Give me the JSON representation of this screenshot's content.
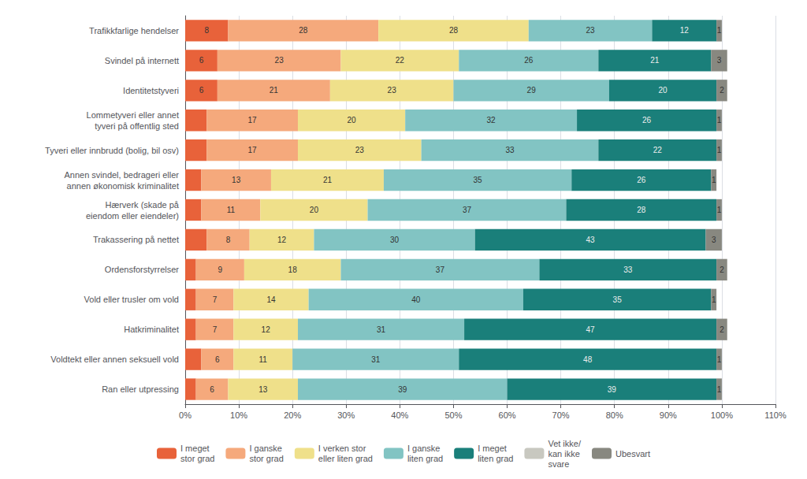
{
  "chart_data": {
    "type": "bar",
    "orientation": "horizontal",
    "stacked": true,
    "categories": [
      "Trafikkfarlige hendelser",
      "Svindel på internett",
      "Identitetstyveri",
      "Lommetyveri eller annet\ntyveri på offentlig sted",
      "Tyveri eller innbrudd (bolig, bil osv)",
      "Annen svindel, bedrageri eller\nannen økonomisk kriminalitet",
      "Hærverk (skade på\neiendom eller eiendeler)",
      "Trakassering på nettet",
      "Ordensforstyrrelser",
      "Vold eller trusler om vold",
      "Hatkriminalitet",
      "Voldtekt eller annen seksuell vold",
      "Ran eller utpressing"
    ],
    "series": [
      {
        "name": "I meget\nstor grad",
        "color": "#E8623A",
        "values": [
          8,
          6,
          6,
          4,
          4,
          3,
          3,
          4,
          2,
          2,
          2,
          3,
          2
        ],
        "value_labels": [
          "8",
          "6",
          "6",
          null,
          null,
          null,
          null,
          null,
          null,
          null,
          null,
          null,
          null
        ]
      },
      {
        "name": "I ganske\nstor grad",
        "color": "#F5A97C",
        "values": [
          28,
          23,
          21,
          17,
          17,
          13,
          11,
          8,
          9,
          7,
          7,
          6,
          6
        ]
      },
      {
        "name": "I verken stor\neller liten grad",
        "color": "#EFE08A",
        "values": [
          28,
          22,
          23,
          20,
          23,
          21,
          20,
          12,
          18,
          14,
          12,
          11,
          13
        ]
      },
      {
        "name": "I ganske\nliten grad",
        "color": "#82C4C3",
        "values": [
          23,
          26,
          29,
          32,
          33,
          35,
          37,
          30,
          37,
          40,
          31,
          31,
          39
        ]
      },
      {
        "name": "I meget\nliten grad",
        "color": "#1A7F7A",
        "values": [
          12,
          21,
          20,
          26,
          22,
          26,
          28,
          43,
          33,
          35,
          47,
          48,
          39
        ]
      },
      {
        "name": "Vet ikke/\nkan ikke\nsvare",
        "color": "#C8C8C0",
        "values": [
          0,
          0,
          0,
          0,
          0,
          0,
          0,
          0,
          0,
          0,
          0,
          0,
          0
        ],
        "value_labels": [
          null,
          null,
          null,
          null,
          null,
          null,
          null,
          null,
          null,
          null,
          null,
          null,
          null
        ]
      },
      {
        "name": "Ubesvart",
        "color": "#888880",
        "values": [
          1,
          3,
          2,
          1,
          1,
          1,
          1,
          3,
          2,
          1,
          2,
          1,
          1
        ]
      }
    ],
    "xlim": [
      0,
      110
    ],
    "xticks": [
      {
        "value": 0,
        "label": "0%"
      },
      {
        "value": 10,
        "label": "10%"
      },
      {
        "value": 20,
        "label": "20%"
      },
      {
        "value": 30,
        "label": "30%"
      },
      {
        "value": 40,
        "label": "40%"
      },
      {
        "value": 50,
        "label": "50%"
      },
      {
        "value": 60,
        "label": "60%"
      },
      {
        "value": 70,
        "label": "70%"
      },
      {
        "value": 80,
        "label": "80%"
      },
      {
        "value": 90,
        "label": "90%"
      },
      {
        "value": 100,
        "label": "100%"
      },
      {
        "value": 110,
        "label": "110%"
      }
    ],
    "grid": true,
    "legend": "bottom",
    "data_labels": true
  }
}
